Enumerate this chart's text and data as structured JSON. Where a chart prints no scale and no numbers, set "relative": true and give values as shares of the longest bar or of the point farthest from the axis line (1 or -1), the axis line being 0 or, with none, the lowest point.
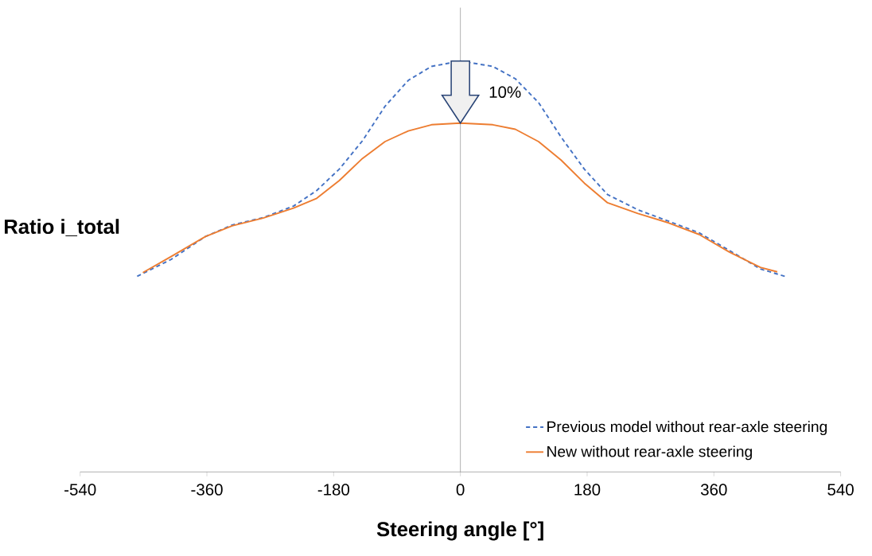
{
  "chart_data": {
    "type": "line",
    "relative": true,
    "xlabel": "Steering angle [°]",
    "ylabel": "Ratio i_total",
    "xlim": [
      -540,
      540
    ],
    "xticks": [
      -540,
      -360,
      -180,
      0,
      180,
      360,
      540
    ],
    "legend": "bottom right",
    "annotations": [
      "10%"
    ],
    "series": [
      {
        "name": "Previous model without rear-axle steering",
        "color": "#4472c4",
        "line_style": "dashed",
        "x": [
          -459,
          -411,
          -362,
          -324,
          -280,
          -237,
          -204,
          -172,
          -139,
          -107,
          -74,
          -41,
          0,
          46,
          78,
          111,
          143,
          176,
          209,
          252,
          296,
          339,
          382,
          426,
          461
        ],
        "values": [
          0.476,
          0.517,
          0.573,
          0.601,
          0.619,
          0.647,
          0.685,
          0.737,
          0.806,
          0.89,
          0.953,
          0.987,
          1.0,
          0.987,
          0.957,
          0.899,
          0.815,
          0.737,
          0.675,
          0.638,
          0.61,
          0.582,
          0.539,
          0.494,
          0.476
        ]
      },
      {
        "name": "New without rear-axle steering",
        "color": "#ed7d31",
        "line_style": "solid",
        "x": [
          -451,
          -411,
          -362,
          -324,
          -280,
          -237,
          -204,
          -172,
          -139,
          -107,
          -74,
          -41,
          0,
          46,
          78,
          111,
          143,
          176,
          209,
          252,
          296,
          339,
          382,
          426,
          450
        ],
        "values": [
          0.485,
          0.524,
          0.573,
          0.599,
          0.618,
          0.642,
          0.666,
          0.709,
          0.763,
          0.804,
          0.83,
          0.845,
          0.849,
          0.845,
          0.834,
          0.804,
          0.759,
          0.703,
          0.655,
          0.629,
          0.606,
          0.578,
          0.535,
          0.498,
          0.487
        ]
      }
    ]
  }
}
